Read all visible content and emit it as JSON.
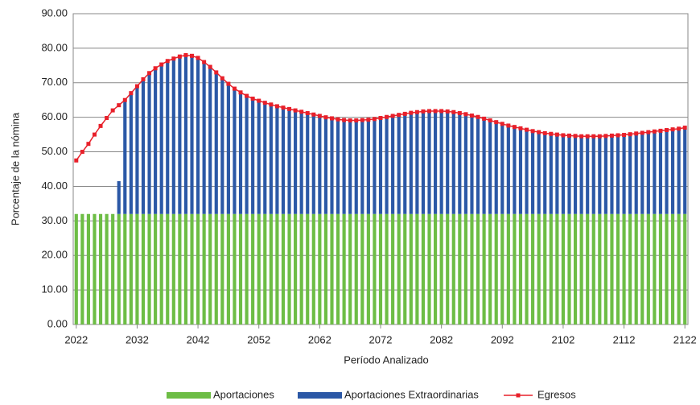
{
  "chart_data": {
    "type": "stacked-bar-line",
    "xlabel": "Período Analizado",
    "ylabel": "Porcentaje de la nómina",
    "x": [
      2022,
      2023,
      2024,
      2025,
      2026,
      2027,
      2028,
      2029,
      2030,
      2031,
      2032,
      2033,
      2034,
      2035,
      2036,
      2037,
      2038,
      2039,
      2040,
      2041,
      2042,
      2043,
      2044,
      2045,
      2046,
      2047,
      2048,
      2049,
      2050,
      2051,
      2052,
      2053,
      2054,
      2055,
      2056,
      2057,
      2058,
      2059,
      2060,
      2061,
      2062,
      2063,
      2064,
      2065,
      2066,
      2067,
      2068,
      2069,
      2070,
      2071,
      2072,
      2073,
      2074,
      2075,
      2076,
      2077,
      2078,
      2079,
      2080,
      2081,
      2082,
      2083,
      2084,
      2085,
      2086,
      2087,
      2088,
      2089,
      2090,
      2091,
      2092,
      2093,
      2094,
      2095,
      2096,
      2097,
      2098,
      2099,
      2100,
      2101,
      2102,
      2103,
      2104,
      2105,
      2106,
      2107,
      2108,
      2109,
      2110,
      2111,
      2112,
      2113,
      2114,
      2115,
      2116,
      2117,
      2118,
      2119,
      2120,
      2121,
      2122
    ],
    "xlim": [
      2021.5,
      2122.5
    ],
    "xticks": [
      2022,
      2032,
      2042,
      2052,
      2062,
      2072,
      2082,
      2092,
      2102,
      2112,
      2122
    ],
    "ylim": [
      0,
      90
    ],
    "yticks": [
      {
        "value": 0,
        "label": "0.00"
      },
      {
        "value": 10,
        "label": "10.00"
      },
      {
        "value": 20,
        "label": "20.00"
      },
      {
        "value": 30,
        "label": "30.00"
      },
      {
        "value": 40,
        "label": "40.00"
      },
      {
        "value": 50,
        "label": "50.00"
      },
      {
        "value": 60,
        "label": "60.00"
      },
      {
        "value": 70,
        "label": "70.00"
      },
      {
        "value": 80,
        "label": "80.00"
      },
      {
        "value": 90,
        "label": "90.00"
      }
    ],
    "grid": true,
    "legend": "bottom",
    "series": [
      {
        "name": "Aportaciones",
        "kind": "bar",
        "color": "#6dbd45",
        "values": [
          32,
          32,
          32,
          32,
          32,
          32,
          32,
          32,
          32,
          32,
          32,
          32,
          32,
          32,
          32,
          32,
          32,
          32,
          32,
          32,
          32,
          32,
          32,
          32,
          32,
          32,
          32,
          32,
          32,
          32,
          32,
          32,
          32,
          32,
          32,
          32,
          32,
          32,
          32,
          32,
          32,
          32,
          32,
          32,
          32,
          32,
          32,
          32,
          32,
          32,
          32,
          32,
          32,
          32,
          32,
          32,
          32,
          32,
          32,
          32,
          32,
          32,
          32,
          32,
          32,
          32,
          32,
          32,
          32,
          32,
          32,
          32,
          32,
          32,
          32,
          32,
          32,
          32,
          32,
          32,
          32,
          32,
          32,
          32,
          32,
          32,
          32,
          32,
          32,
          32,
          32,
          32,
          32,
          32,
          32,
          32,
          32,
          32,
          32,
          32,
          32
        ]
      },
      {
        "name": "Aportaciones Extraordinarias",
        "kind": "bar",
        "color": "#2b58a6",
        "values": [
          0,
          0,
          0,
          0,
          0,
          0,
          0,
          9.5,
          33,
          35,
          37,
          39,
          40.8,
          42.2,
          43.3,
          44.3,
          45,
          45.6,
          46,
          45.8,
          45.2,
          44,
          42.6,
          41,
          39.3,
          37.7,
          36.3,
          35.2,
          34.2,
          33.4,
          32.8,
          32.2,
          31.7,
          31.2,
          30.8,
          30.4,
          30,
          29.6,
          29.2,
          28.8,
          28.4,
          28,
          27.7,
          27.4,
          27.2,
          27.1,
          27.1,
          27.2,
          27.3,
          27.5,
          27.8,
          28.1,
          28.4,
          28.7,
          29,
          29.3,
          29.5,
          29.7,
          29.8,
          29.8,
          29.8,
          29.7,
          29.5,
          29.2,
          28.9,
          28.5,
          28.1,
          27.6,
          27.1,
          26.6,
          26.1,
          25.6,
          25.2,
          24.8,
          24.4,
          24,
          23.7,
          23.4,
          23.2,
          23,
          22.8,
          22.7,
          22.6,
          22.5,
          22.5,
          22.5,
          22.5,
          22.6,
          22.7,
          22.8,
          22.9,
          23.1,
          23.3,
          23.5,
          23.7,
          23.9,
          24.1,
          24.3,
          24.5,
          24.7,
          25
        ]
      },
      {
        "name": "Egresos",
        "kind": "line",
        "color": "#e8202a",
        "values": [
          47.5,
          50,
          52.3,
          55,
          57.5,
          59.8,
          62,
          63.5,
          65,
          67,
          69,
          71,
          72.8,
          74.2,
          75.3,
          76.3,
          77,
          77.6,
          78,
          77.8,
          77.2,
          76,
          74.6,
          73,
          71.3,
          69.7,
          68.3,
          67.2,
          66.2,
          65.4,
          64.8,
          64.2,
          63.7,
          63.2,
          62.8,
          62.4,
          62,
          61.6,
          61.2,
          60.8,
          60.4,
          60,
          59.7,
          59.4,
          59.2,
          59.1,
          59.1,
          59.2,
          59.3,
          59.5,
          59.8,
          60.1,
          60.4,
          60.7,
          61,
          61.3,
          61.5,
          61.7,
          61.8,
          61.8,
          61.8,
          61.7,
          61.5,
          61.2,
          60.9,
          60.5,
          60.1,
          59.6,
          59.1,
          58.6,
          58.1,
          57.6,
          57.2,
          56.8,
          56.4,
          56,
          55.7,
          55.4,
          55.2,
          55,
          54.8,
          54.7,
          54.6,
          54.5,
          54.5,
          54.5,
          54.5,
          54.6,
          54.7,
          54.8,
          54.9,
          55.1,
          55.3,
          55.5,
          55.7,
          55.9,
          56.1,
          56.3,
          56.5,
          56.7,
          57
        ]
      }
    ]
  }
}
